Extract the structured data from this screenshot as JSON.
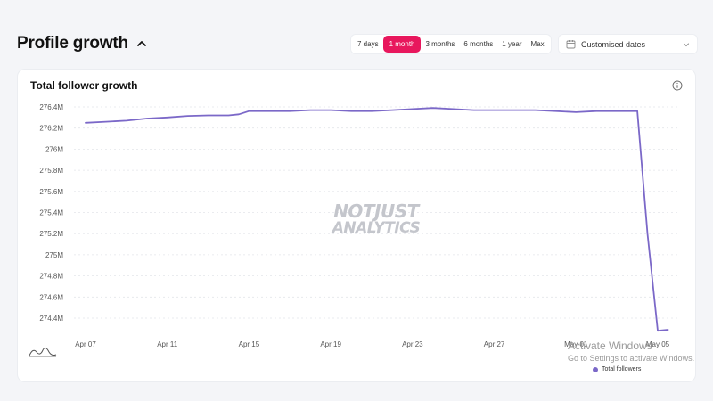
{
  "header": {
    "title": "Profile growth",
    "ranges": [
      {
        "label": "7 days",
        "active": false
      },
      {
        "label": "1 month",
        "active": true
      },
      {
        "label": "3 months",
        "active": false
      },
      {
        "label": "6 months",
        "active": false
      },
      {
        "label": "1 year",
        "active": false
      },
      {
        "label": "Max",
        "active": false
      }
    ],
    "date_select": "Customised dates"
  },
  "card": {
    "title": "Total follower growth"
  },
  "watermark": {
    "line1": "NOTJUST",
    "line2": "ANALYTICS"
  },
  "os_overlay": {
    "line1": "Activate Windows",
    "line2": "Go to Settings to activate Windows."
  },
  "colors": {
    "accent": "#e8175d",
    "series": "#7b68c8"
  },
  "chart_data": {
    "type": "line",
    "title": "Total follower growth",
    "ylim": [
      274.3,
      276.5
    ],
    "y_ticks": [
      274.4,
      274.6,
      274.8,
      275.0,
      275.2,
      275.4,
      275.6,
      275.8,
      276.0,
      276.2,
      276.4
    ],
    "y_tick_labels": [
      "274.4M",
      "274.6M",
      "274.8M",
      "275M",
      "275.2M",
      "275.4M",
      "275.6M",
      "275.8M",
      "276M",
      "276.2M",
      "276.4M"
    ],
    "x_tick_labels": [
      "Apr 07",
      "Apr 11",
      "Apr 15",
      "Apr 19",
      "Apr 23",
      "Apr 27",
      "May 01",
      "May 05"
    ],
    "x_tick_days": [
      0,
      4,
      8,
      12,
      16,
      20,
      24,
      28
    ],
    "legend": "Total followers",
    "grid": true,
    "series": [
      {
        "name": "Total followers",
        "x": [
          0,
          1,
          2,
          3,
          4,
          5,
          6,
          7,
          7.5,
          8,
          9,
          10,
          11,
          12,
          13,
          14,
          15,
          16,
          17,
          18,
          19,
          20,
          21,
          22,
          23,
          24,
          25,
          26,
          27,
          27.5,
          28,
          28.5
        ],
        "y": [
          276.25,
          276.26,
          276.27,
          276.29,
          276.3,
          276.315,
          276.32,
          276.32,
          276.33,
          276.36,
          276.36,
          276.36,
          276.37,
          276.37,
          276.36,
          276.36,
          276.37,
          276.38,
          276.39,
          276.38,
          276.37,
          276.37,
          276.37,
          276.37,
          276.36,
          276.35,
          276.36,
          276.36,
          276.36,
          275.2,
          274.28,
          274.29
        ]
      }
    ]
  }
}
